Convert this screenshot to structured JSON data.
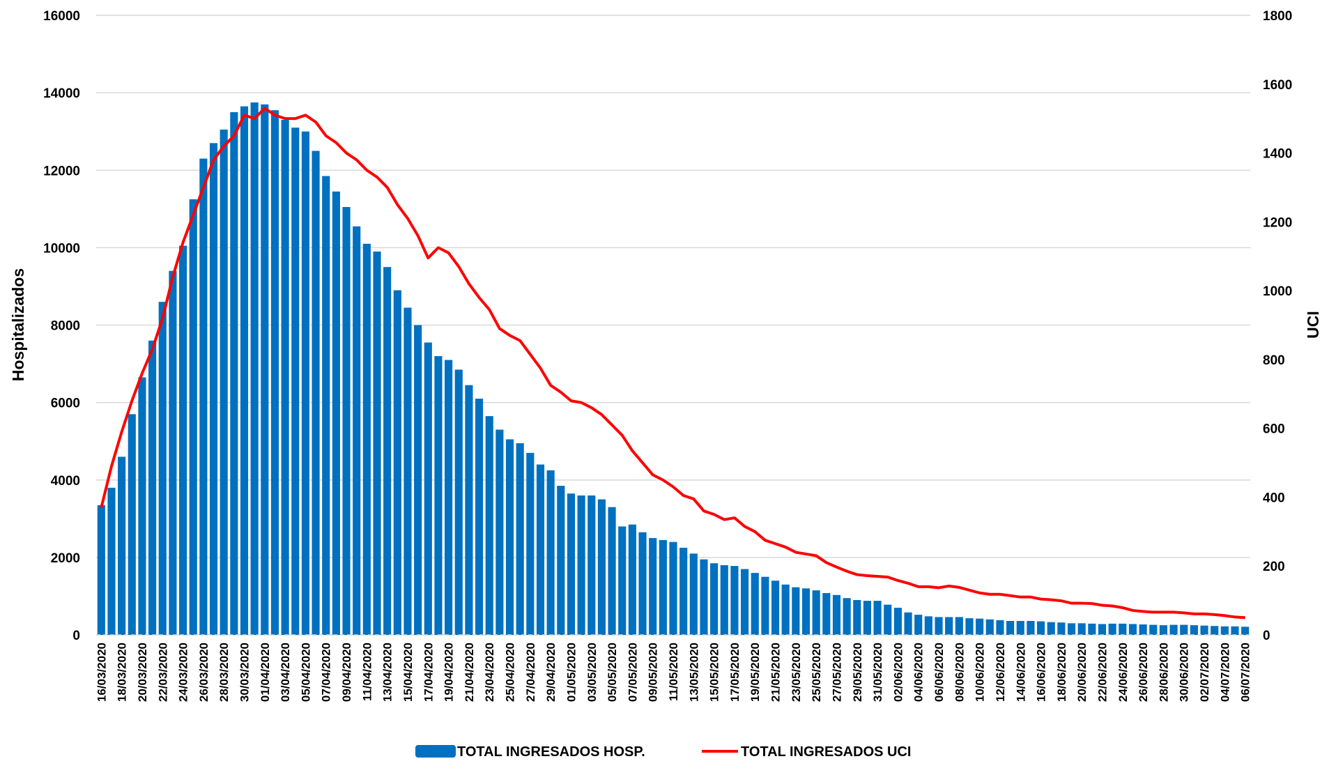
{
  "chart_data": {
    "type": "bar_line",
    "y_label": "Hospitalizados",
    "y2_label": "UCI",
    "categories": [
      "16/03/2020",
      null,
      "18/03/2020",
      null,
      "20/03/2020",
      null,
      "22/03/2020",
      null,
      "24/03/2020",
      null,
      "26/03/2020",
      null,
      "28/03/2020",
      null,
      "30/03/2020",
      null,
      "01/04/2020",
      null,
      "03/04/2020",
      null,
      "05/04/2020",
      null,
      "07/04/2020",
      null,
      "09/04/2020",
      null,
      "11/04/2020",
      null,
      "13/04/2020",
      null,
      "15/04/2020",
      null,
      "17/04/2020",
      null,
      "19/04/2020",
      null,
      "21/04/2020",
      null,
      "23/04/2020",
      null,
      "25/04/2020",
      null,
      "27/04/2020",
      null,
      "29/04/2020",
      null,
      "01/05/2020",
      null,
      "03/05/2020",
      null,
      "05/05/2020",
      null,
      "07/05/2020",
      null,
      "09/05/2020",
      null,
      "11/05/2020",
      null,
      "13/05/2020",
      null,
      "15/05/2020",
      null,
      "17/05/2020",
      null,
      "19/05/2020",
      null,
      "21/05/2020",
      null,
      "23/05/2020",
      null,
      "25/05/2020",
      null,
      "27/05/2020",
      null,
      "29/05/2020",
      null,
      "31/05/2020",
      null,
      "02/06/2020",
      null,
      "04/06/2020",
      null,
      "06/06/2020",
      null,
      "08/06/2020",
      null,
      "10/06/2020",
      null,
      "12/06/2020",
      null,
      "14/06/2020",
      null,
      "16/06/2020",
      null,
      "18/06/2020",
      null,
      "20/06/2020",
      null,
      "22/06/2020",
      null,
      "24/06/2020",
      null,
      "26/06/2020",
      null,
      "28/06/2020",
      null,
      "30/06/2020",
      null,
      "02/07/2020",
      null,
      "04/07/2020",
      null,
      "06/07/2020"
    ],
    "series": [
      {
        "name": "TOTAL INGRESADOS HOSP.",
        "type": "bar",
        "color": "#0070c0",
        "values": [
          3350,
          3800,
          4600,
          5700,
          6650,
          7600,
          8600,
          9400,
          10050,
          11250,
          12300,
          12700,
          13050,
          13500,
          13650,
          13750,
          13700,
          13550,
          13300,
          13100,
          13000,
          12500,
          11850,
          11450,
          11050,
          10550,
          10100,
          9900,
          9500,
          8900,
          8450,
          8000,
          7550,
          7200,
          7100,
          6850,
          6450,
          6100,
          5650,
          5300,
          5050,
          4950,
          4700,
          4400,
          4250,
          3850,
          3650,
          3600,
          3600,
          3500,
          3300,
          2800,
          2850,
          2650,
          2500,
          2450,
          2400,
          2250,
          2100,
          1950,
          1850,
          1800,
          1780,
          1700,
          1600,
          1500,
          1400,
          1300,
          1230,
          1200,
          1150,
          1080,
          1030,
          950,
          900,
          880,
          880,
          780,
          700,
          580,
          520,
          480,
          460,
          460,
          460,
          430,
          420,
          400,
          380,
          360,
          360,
          360,
          350,
          330,
          320,
          300,
          300,
          290,
          280,
          290,
          290,
          280,
          270,
          260,
          250,
          260,
          260,
          250,
          240,
          230,
          220,
          220,
          210
        ]
      },
      {
        "name": "TOTAL INGRESADOS UCI",
        "type": "line",
        "axis": "y2",
        "color": "#ff0000",
        "values": [
          370,
          490,
          590,
          680,
          760,
          830,
          920,
          1040,
          1140,
          1220,
          1300,
          1380,
          1420,
          1450,
          1510,
          1500,
          1530,
          1510,
          1500,
          1500,
          1510,
          1490,
          1450,
          1430,
          1400,
          1380,
          1350,
          1330,
          1300,
          1250,
          1210,
          1160,
          1095,
          1125,
          1110,
          1070,
          1020,
          980,
          945,
          890,
          870,
          855,
          815,
          775,
          725,
          705,
          680,
          675,
          660,
          640,
          610,
          580,
          535,
          500,
          465,
          450,
          430,
          405,
          395,
          360,
          350,
          335,
          340,
          315,
          300,
          275,
          265,
          255,
          240,
          235,
          230,
          210,
          197,
          185,
          175,
          172,
          170,
          168,
          158,
          150,
          140,
          140,
          137,
          142,
          138,
          130,
          122,
          118,
          118,
          114,
          110,
          110,
          104,
          102,
          99,
          92,
          92,
          91,
          86,
          84,
          79,
          71,
          68,
          66,
          66,
          66,
          64,
          61,
          61,
          59,
          56,
          52,
          50
        ]
      }
    ],
    "ylim": [
      0,
      16000
    ],
    "yticks": [
      0,
      2000,
      4000,
      6000,
      8000,
      10000,
      12000,
      14000,
      16000
    ],
    "y2lim": [
      0,
      1800
    ],
    "y2ticks": [
      0,
      200,
      400,
      600,
      800,
      1000,
      1200,
      1400,
      1600,
      1800
    ],
    "grid": true
  }
}
